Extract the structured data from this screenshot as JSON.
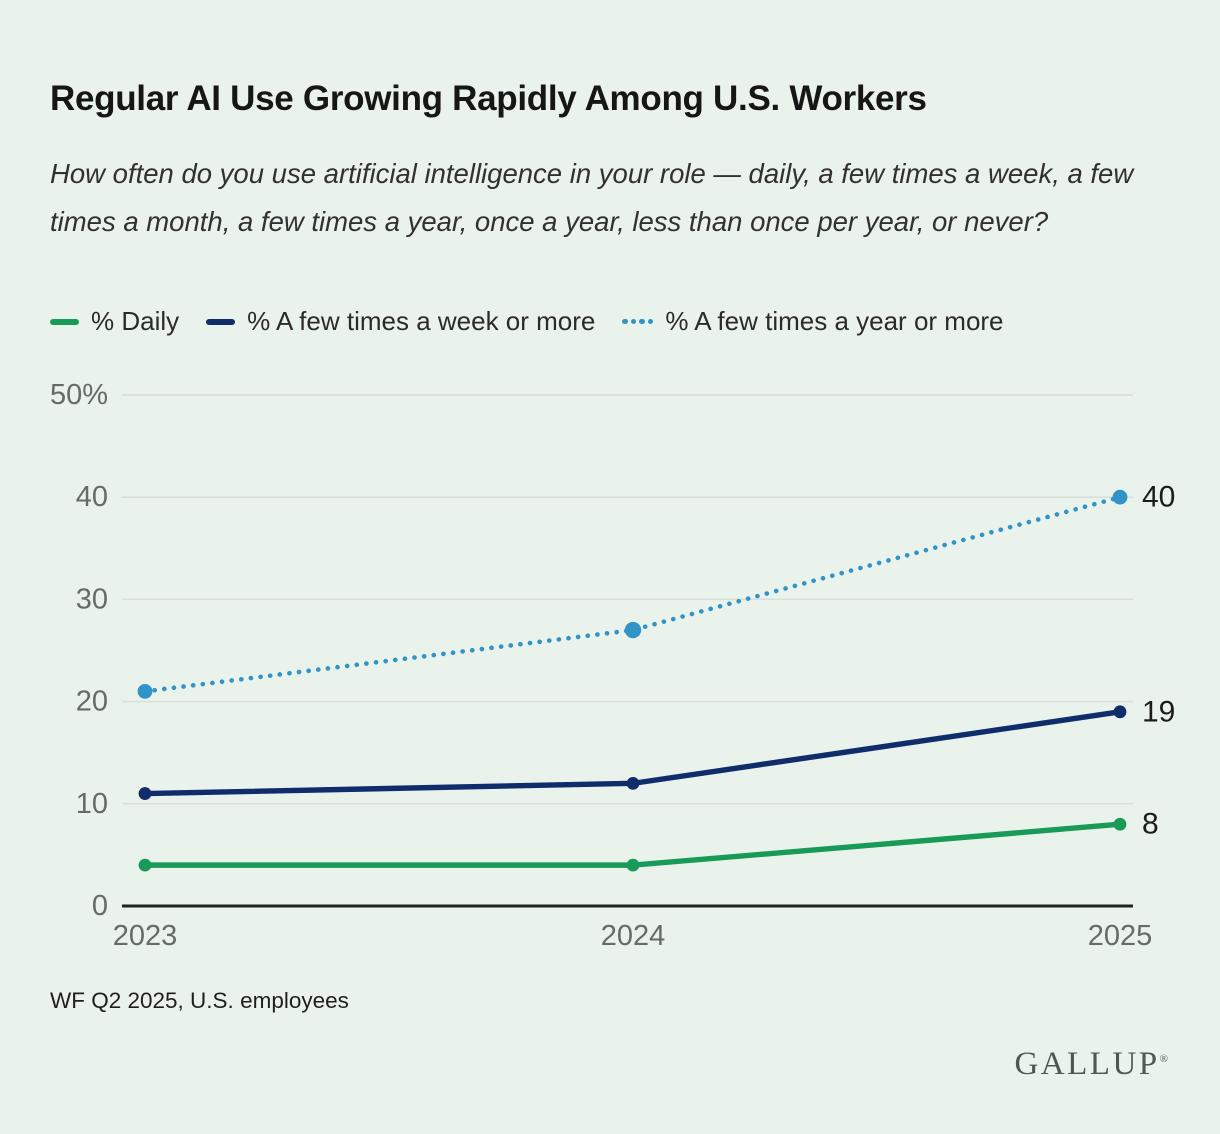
{
  "page": {
    "title": "Regular AI Use Growing Rapidly Among U.S. Workers",
    "subtitle": "How often do you use artificial intelligence in your role — daily, a few times a week, a few times a month, a few times a year, once a year, less than once per year, or never?",
    "source": "WF Q2 2025, U.S. employees",
    "brand": "GALLUP",
    "brand_mark": "®",
    "background_color": "#eaf2ec"
  },
  "colors": {
    "daily_green": "#189b57",
    "weekly_navy": "#0f2c6b",
    "yearly_blue": "#3094c8",
    "gridline": "#d8ded9",
    "axis_line": "#1f221f",
    "tick_label": "#666b67",
    "end_label": "#1c1c1c"
  },
  "chart_data": {
    "type": "line",
    "title": "Regular AI Use Growing Rapidly Among U.S. Workers",
    "x": [
      "2023",
      "2024",
      "2025"
    ],
    "series": [
      {
        "name": "% Daily",
        "values": [
          4,
          4,
          8
        ],
        "color": "#189b57",
        "style": "solid",
        "end_label": "8"
      },
      {
        "name": "% A few times a week or more",
        "values": [
          11,
          12,
          19
        ],
        "color": "#0f2c6b",
        "style": "solid",
        "end_label": "19"
      },
      {
        "name": "% A few times a year or more",
        "values": [
          21,
          27,
          40
        ],
        "color": "#3094c8",
        "style": "dotted",
        "end_label": "40"
      }
    ],
    "ylim": [
      0,
      50
    ],
    "yticks": [
      0,
      10,
      20,
      30,
      40,
      50
    ],
    "ytick_labels": [
      "0",
      "10",
      "20",
      "30",
      "40",
      "50%"
    ],
    "grid": true,
    "legend_position": "top",
    "xlabel": "",
    "ylabel": ""
  }
}
